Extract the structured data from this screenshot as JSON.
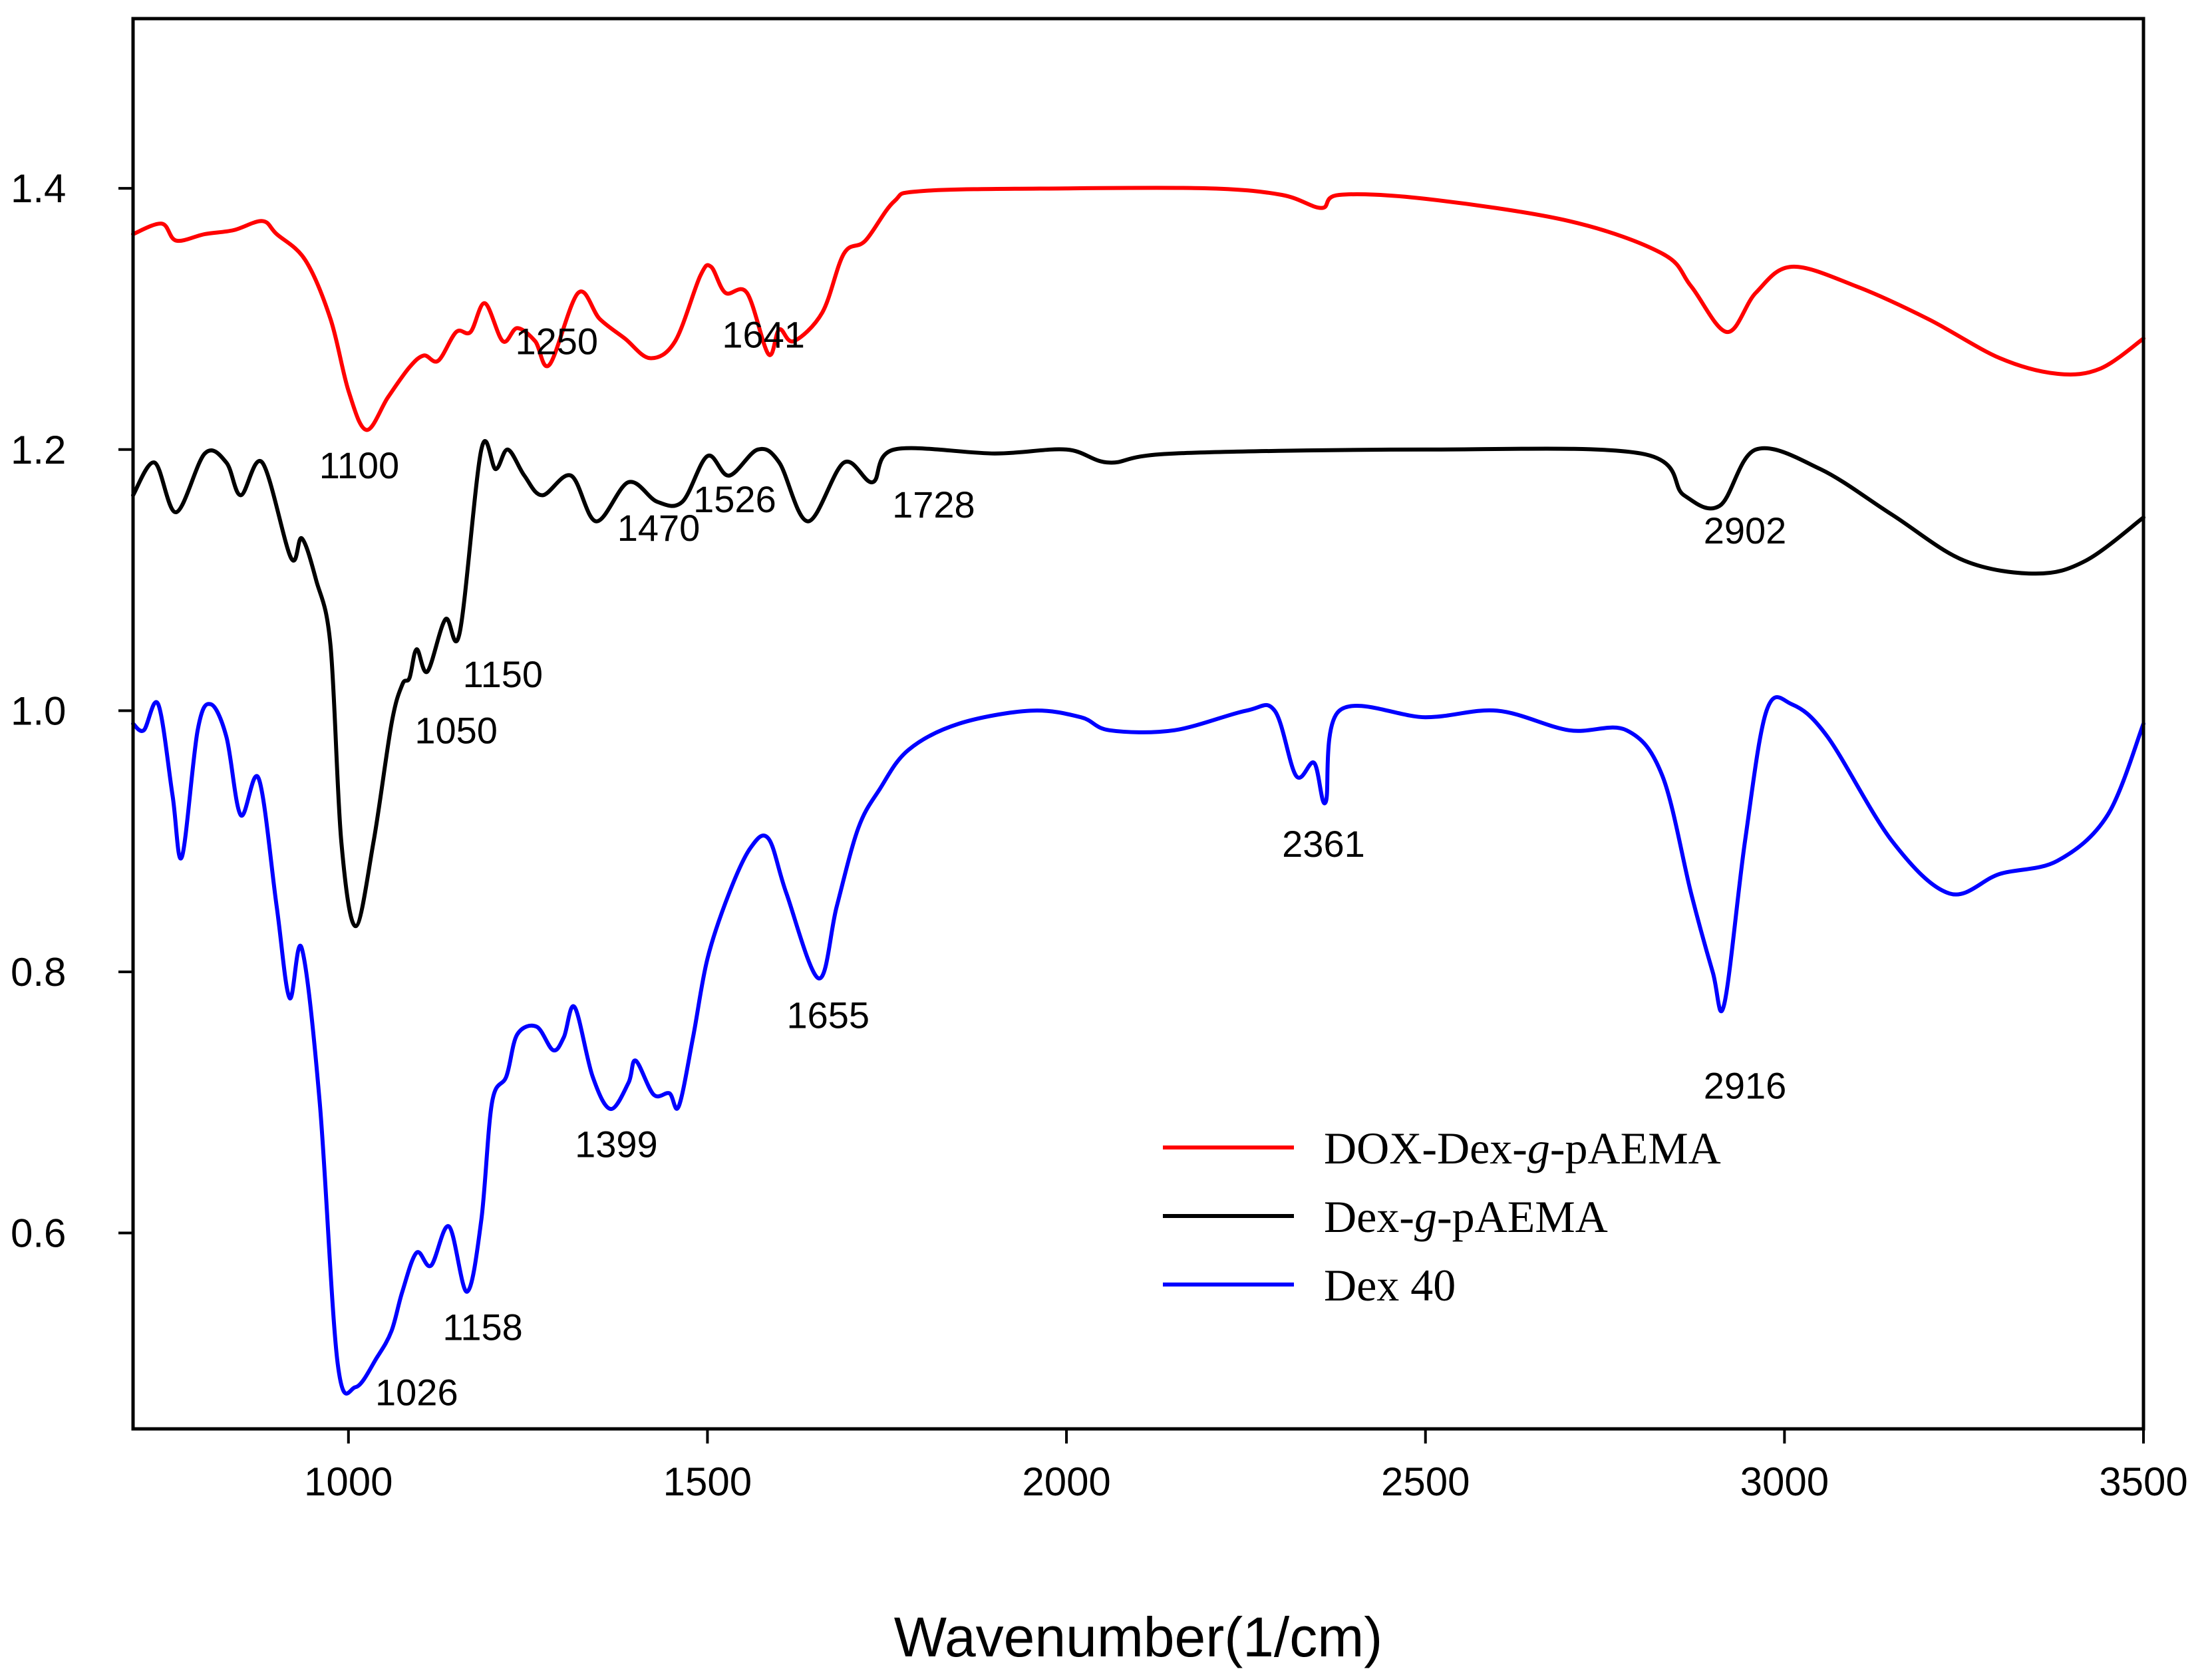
{
  "chart_data": {
    "type": "line",
    "title": "",
    "xlabel": "Wavenumber(1/cm)",
    "ylabel": "",
    "xlim": [
      700,
      3500
    ],
    "ylim": [
      0.45,
      1.53
    ],
    "x_ticks": [
      1000,
      1500,
      2000,
      2500,
      3000,
      3500
    ],
    "x_tick_labels": [
      "1000",
      "1500",
      "2000",
      "2500",
      "3000",
      "3500"
    ],
    "y_ticks": [
      0.6,
      0.8,
      1.0,
      1.2,
      1.4
    ],
    "y_tick_labels": [
      "0.6",
      "0.8",
      "1.0",
      "1.2",
      "1.4"
    ],
    "grid": false,
    "legend_position": "bottom-right",
    "series": [
      {
        "name": "DOX-Dex-g-pAEMA",
        "legend_parts": [
          "DOX-Dex-",
          "g",
          "-pAEMA"
        ],
        "color": "#ff0000",
        "points": [
          [
            700,
            1.365
          ],
          [
            740,
            1.373
          ],
          [
            760,
            1.36
          ],
          [
            800,
            1.365
          ],
          [
            840,
            1.368
          ],
          [
            880,
            1.375
          ],
          [
            900,
            1.365
          ],
          [
            940,
            1.345
          ],
          [
            975,
            1.3
          ],
          [
            1000,
            1.245
          ],
          [
            1025,
            1.215
          ],
          [
            1055,
            1.24
          ],
          [
            1085,
            1.263
          ],
          [
            1105,
            1.272
          ],
          [
            1125,
            1.268
          ],
          [
            1150,
            1.29
          ],
          [
            1170,
            1.29
          ],
          [
            1190,
            1.312
          ],
          [
            1215,
            1.283
          ],
          [
            1235,
            1.293
          ],
          [
            1260,
            1.283
          ],
          [
            1280,
            1.265
          ],
          [
            1320,
            1.32
          ],
          [
            1350,
            1.3
          ],
          [
            1385,
            1.285
          ],
          [
            1420,
            1.27
          ],
          [
            1455,
            1.283
          ],
          [
            1490,
            1.333
          ],
          [
            1505,
            1.34
          ],
          [
            1525,
            1.32
          ],
          [
            1555,
            1.32
          ],
          [
            1585,
            1.273
          ],
          [
            1600,
            1.292
          ],
          [
            1620,
            1.283
          ],
          [
            1660,
            1.305
          ],
          [
            1690,
            1.35
          ],
          [
            1720,
            1.36
          ],
          [
            1760,
            1.39
          ],
          [
            1800,
            1.398
          ],
          [
            2000,
            1.4
          ],
          [
            2200,
            1.4
          ],
          [
            2300,
            1.395
          ],
          [
            2355,
            1.385
          ],
          [
            2380,
            1.395
          ],
          [
            2500,
            1.392
          ],
          [
            2700,
            1.375
          ],
          [
            2830,
            1.35
          ],
          [
            2870,
            1.325
          ],
          [
            2920,
            1.29
          ],
          [
            2960,
            1.32
          ],
          [
            3010,
            1.34
          ],
          [
            3100,
            1.325
          ],
          [
            3200,
            1.3
          ],
          [
            3300,
            1.27
          ],
          [
            3380,
            1.258
          ],
          [
            3440,
            1.262
          ],
          [
            3500,
            1.285
          ]
        ]
      },
      {
        "name": "Dex-g-pAEMA",
        "legend_parts": [
          "Dex-",
          "g",
          "-pAEMA"
        ],
        "color": "#000000",
        "points": [
          [
            700,
            1.165
          ],
          [
            730,
            1.19
          ],
          [
            760,
            1.152
          ],
          [
            800,
            1.197
          ],
          [
            830,
            1.19
          ],
          [
            850,
            1.165
          ],
          [
            880,
            1.19
          ],
          [
            920,
            1.117
          ],
          [
            935,
            1.132
          ],
          [
            955,
            1.1
          ],
          [
            975,
            1.05
          ],
          [
            990,
            0.9
          ],
          [
            1010,
            0.835
          ],
          [
            1035,
            0.9
          ],
          [
            1060,
            0.99
          ],
          [
            1075,
            1.02
          ],
          [
            1085,
            1.025
          ],
          [
            1095,
            1.047
          ],
          [
            1110,
            1.03
          ],
          [
            1135,
            1.07
          ],
          [
            1155,
            1.06
          ],
          [
            1185,
            1.2
          ],
          [
            1205,
            1.185
          ],
          [
            1222,
            1.2
          ],
          [
            1245,
            1.18
          ],
          [
            1270,
            1.165
          ],
          [
            1310,
            1.18
          ],
          [
            1345,
            1.145
          ],
          [
            1390,
            1.175
          ],
          [
            1430,
            1.16
          ],
          [
            1465,
            1.16
          ],
          [
            1500,
            1.195
          ],
          [
            1530,
            1.18
          ],
          [
            1570,
            1.2
          ],
          [
            1600,
            1.19
          ],
          [
            1640,
            1.145
          ],
          [
            1690,
            1.19
          ],
          [
            1730,
            1.175
          ],
          [
            1760,
            1.2
          ],
          [
            1900,
            1.197
          ],
          [
            2000,
            1.2
          ],
          [
            2060,
            1.19
          ],
          [
            2150,
            1.197
          ],
          [
            2500,
            1.2
          ],
          [
            2800,
            1.197
          ],
          [
            2860,
            1.165
          ],
          [
            2910,
            1.157
          ],
          [
            2960,
            1.2
          ],
          [
            3050,
            1.185
          ],
          [
            3150,
            1.15
          ],
          [
            3250,
            1.115
          ],
          [
            3350,
            1.105
          ],
          [
            3420,
            1.115
          ],
          [
            3500,
            1.148
          ]
        ]
      },
      {
        "name": "Dex 40",
        "legend_parts": [
          "Dex 40",
          "",
          ""
        ],
        "color": "#0000ff",
        "points": [
          [
            700,
            0.99
          ],
          [
            715,
            0.985
          ],
          [
            735,
            1.005
          ],
          [
            755,
            0.935
          ],
          [
            768,
            0.888
          ],
          [
            790,
            0.985
          ],
          [
            808,
            1.005
          ],
          [
            830,
            0.98
          ],
          [
            850,
            0.92
          ],
          [
            875,
            0.948
          ],
          [
            900,
            0.85
          ],
          [
            918,
            0.78
          ],
          [
            935,
            0.818
          ],
          [
            960,
            0.7
          ],
          [
            985,
            0.5
          ],
          [
            1010,
            0.482
          ],
          [
            1040,
            0.505
          ],
          [
            1060,
            0.525
          ],
          [
            1075,
            0.555
          ],
          [
            1095,
            0.585
          ],
          [
            1115,
            0.575
          ],
          [
            1140,
            0.605
          ],
          [
            1165,
            0.555
          ],
          [
            1185,
            0.61
          ],
          [
            1200,
            0.7
          ],
          [
            1220,
            0.72
          ],
          [
            1235,
            0.752
          ],
          [
            1262,
            0.758
          ],
          [
            1285,
            0.74
          ],
          [
            1300,
            0.75
          ],
          [
            1315,
            0.773
          ],
          [
            1340,
            0.72
          ],
          [
            1365,
            0.695
          ],
          [
            1390,
            0.715
          ],
          [
            1400,
            0.732
          ],
          [
            1425,
            0.706
          ],
          [
            1447,
            0.707
          ],
          [
            1460,
            0.697
          ],
          [
            1480,
            0.75
          ],
          [
            1500,
            0.81
          ],
          [
            1530,
            0.86
          ],
          [
            1560,
            0.895
          ],
          [
            1585,
            0.902
          ],
          [
            1610,
            0.86
          ],
          [
            1655,
            0.795
          ],
          [
            1680,
            0.85
          ],
          [
            1710,
            0.91
          ],
          [
            1740,
            0.94
          ],
          [
            1780,
            0.97
          ],
          [
            1850,
            0.99
          ],
          [
            1950,
            1.0
          ],
          [
            2020,
            0.995
          ],
          [
            2060,
            0.985
          ],
          [
            2150,
            0.985
          ],
          [
            2250,
            1.0
          ],
          [
            2290,
            1.0
          ],
          [
            2320,
            0.95
          ],
          [
            2345,
            0.96
          ],
          [
            2361,
            0.93
          ],
          [
            2380,
            1.0
          ],
          [
            2500,
            0.995
          ],
          [
            2600,
            1.0
          ],
          [
            2700,
            0.985
          ],
          [
            2780,
            0.985
          ],
          [
            2830,
            0.95
          ],
          [
            2870,
            0.86
          ],
          [
            2900,
            0.8
          ],
          [
            2916,
            0.775
          ],
          [
            2945,
            0.9
          ],
          [
            2975,
            1.0
          ],
          [
            3010,
            1.005
          ],
          [
            3060,
            0.98
          ],
          [
            3150,
            0.9
          ],
          [
            3230,
            0.86
          ],
          [
            3300,
            0.875
          ],
          [
            3380,
            0.885
          ],
          [
            3450,
            0.92
          ],
          [
            3500,
            0.99
          ]
        ]
      }
    ],
    "annotations": [
      {
        "text": "1250",
        "x": 1290,
        "y": 1.273
      },
      {
        "text": "1641",
        "x": 1578,
        "y": 1.278
      },
      {
        "text": "1100",
        "x": 1015,
        "y": 1.178
      },
      {
        "text": "1526",
        "x": 1538,
        "y": 1.152
      },
      {
        "text": "1728",
        "x": 1815,
        "y": 1.148
      },
      {
        "text": "1470",
        "x": 1432,
        "y": 1.13
      },
      {
        "text": "2902",
        "x": 2945,
        "y": 1.128
      },
      {
        "text": "1150",
        "x": 1215,
        "y": 1.018
      },
      {
        "text": "1050",
        "x": 1150,
        "y": 0.975
      },
      {
        "text": "2361",
        "x": 2358,
        "y": 0.888
      },
      {
        "text": "1655",
        "x": 1668,
        "y": 0.757
      },
      {
        "text": "2916",
        "x": 2945,
        "y": 0.703
      },
      {
        "text": "1399",
        "x": 1373,
        "y": 0.658
      },
      {
        "text": "1158",
        "x": 1187,
        "y": 0.518
      },
      {
        "text": "1026",
        "x": 1095,
        "y": 0.468
      }
    ]
  }
}
